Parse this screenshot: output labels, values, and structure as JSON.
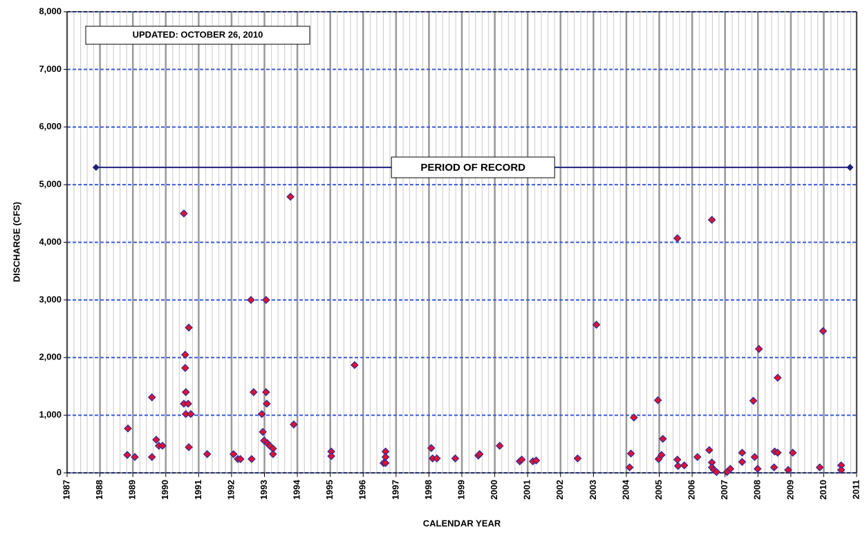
{
  "chart_data": {
    "type": "scatter",
    "xlabel": "CALENDAR YEAR",
    "ylabel": "DISCHARGE (CFS)",
    "annotation": "UPDATED: OCTOBER 26, 2010",
    "x": [
      1988.85,
      1988.83,
      1989.06,
      1989.58,
      1989.58,
      1989.71,
      1989.79,
      1989.9,
      1990.55,
      1990.59,
      1990.59,
      1990.61,
      1990.55,
      1990.68,
      1990.61,
      1990.76,
      1990.7,
      1990.7,
      1991.26,
      1992.06,
      1992.19,
      1992.27,
      1992.59,
      1992.61,
      1992.67,
      1992.92,
      1992.95,
      1992.99,
      1993.05,
      1993.05,
      1993.07,
      1993.09,
      1993.16,
      1993.26,
      1993.26,
      1993.79,
      1993.89,
      1995.03,
      1995.03,
      1995.74,
      1996.62,
      1996.68,
      1996.68,
      1996.68,
      1998.07,
      1998.11,
      1998.24,
      1998.8,
      1999.5,
      1999.54,
      2000.15,
      2000.76,
      2000.82,
      2001.16,
      2001.26,
      2002.52,
      2003.09,
      2004.1,
      2004.14,
      2004.23,
      2004.96,
      2004.98,
      2005.07,
      2005.11,
      2005.55,
      2005.55,
      2005.57,
      2005.76,
      2006.16,
      2006.52,
      2006.6,
      2006.6,
      2006.6,
      2006.66,
      2006.74,
      2007.06,
      2007.16,
      2007.52,
      2007.52,
      2007.86,
      2007.9,
      2007.99,
      2008.03,
      2008.49,
      2008.51,
      2008.6,
      2008.6,
      2008.92,
      2009.06,
      2009.88,
      2009.98,
      2010.53,
      2010.53
    ],
    "values": [
      770,
      310,
      275,
      1310,
      275,
      575,
      470,
      470,
      4500,
      2050,
      1820,
      1400,
      1200,
      1200,
      1020,
      1020,
      2520,
      445,
      325,
      325,
      240,
      240,
      3000,
      240,
      1400,
      1020,
      710,
      560,
      3000,
      1400,
      1200,
      515,
      470,
      420,
      325,
      4790,
      840,
      370,
      290,
      1870,
      170,
      370,
      275,
      170,
      430,
      250,
      250,
      250,
      300,
      325,
      470,
      200,
      230,
      200,
      215,
      250,
      2570,
      95,
      335,
      960,
      1260,
      240,
      310,
      590,
      4070,
      230,
      120,
      130,
      275,
      395,
      4390,
      180,
      95,
      50,
      15,
      15,
      70,
      350,
      190,
      1250,
      275,
      70,
      2150,
      95,
      370,
      1650,
      350,
      50,
      350,
      95,
      2460,
      130,
      50
    ],
    "color": "#e8102a",
    "edge_color": "#2b2b9e",
    "record": {
      "label": "PERIOD OF RECORD",
      "x": [
        1987.88,
        2010.8
      ],
      "values": [
        5300,
        5300
      ],
      "color": "#1f1f7a"
    },
    "xlim": [
      1987,
      2011
    ],
    "xticks": [
      1987,
      1988,
      1989,
      1990,
      1991,
      1992,
      1993,
      1994,
      1995,
      1996,
      1997,
      1998,
      1999,
      2000,
      2001,
      2002,
      2003,
      2004,
      2005,
      2006,
      2007,
      2008,
      2009,
      2010,
      2011
    ],
    "ylim": [
      0,
      8000
    ],
    "yticks": [
      0,
      {
        "value": 1000,
        "label": "1,000"
      },
      {
        "value": 2000,
        "label": "2,000"
      },
      {
        "value": 3000,
        "label": "3,000"
      },
      {
        "value": 4000,
        "label": "4,000"
      },
      {
        "value": 5000,
        "label": "5,000"
      },
      {
        "value": 6000,
        "label": "6,000"
      },
      {
        "value": 7000,
        "label": "7,000"
      },
      {
        "value": 8000,
        "label": "8,000"
      }
    ],
    "grid": true
  }
}
